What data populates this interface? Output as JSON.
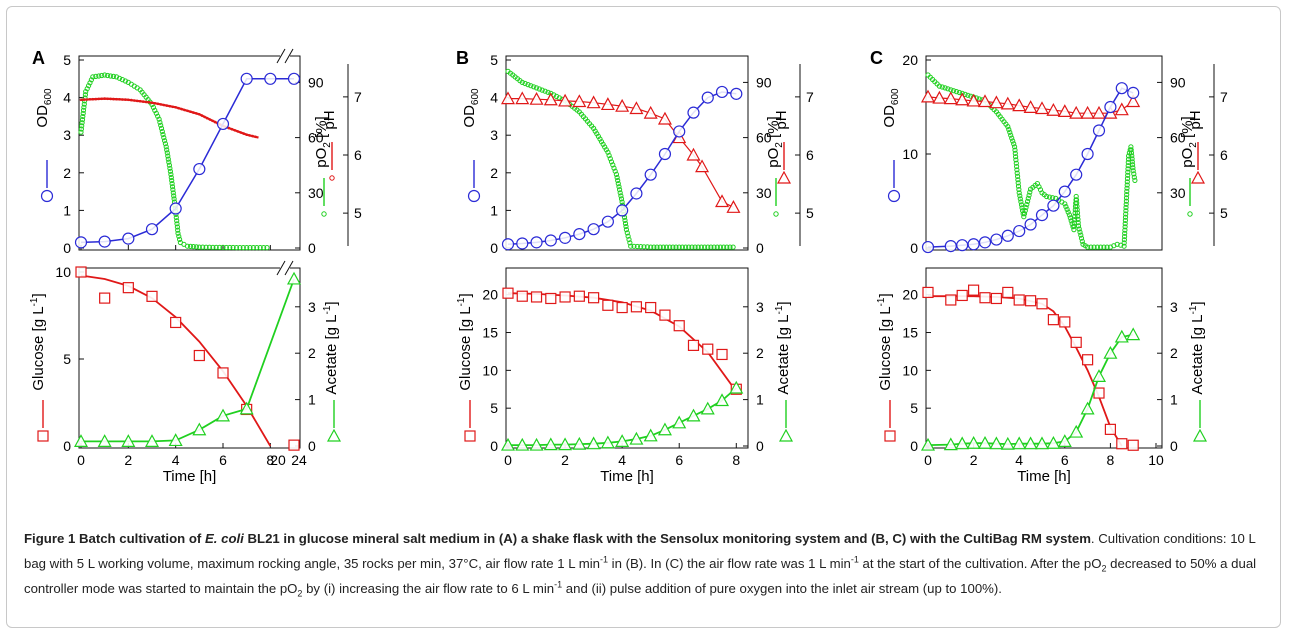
{
  "colors": {
    "blue": "#2b2bd6",
    "green": "#20d020",
    "red": "#e01818",
    "axis": "#111111",
    "caption_rule": "#cccccc"
  },
  "caption": {
    "bold_part1": "Figure 1 Batch cultivation of ",
    "bold_species": "E. coli",
    "bold_part2": " BL21 in glucose mineral salt medium in (A) a shake flask with the Sensolux monitoring system and (B, C) with the CultiBag RM system",
    "text1": ". Cultivation conditions: 10 L bag with 5 L working volume, maximum rocking angle, 35 rocks per min, 37°C, air flow rate 1 L min",
    "sup_minus1": "-1",
    "text2": " in (B). In (C) the air flow rate was 1 L min",
    "text3": " at the start of the cultivation. After the pO",
    "sub2": "2",
    "text4": " decreased to 50% a dual controller mode was started to maintain the pO",
    "text5": " by (i) increasing the air flow rate to 6 L min",
    "text6": " and (ii) pulse addition of pure oxygen into the inlet air stream (up to 100%)."
  },
  "chart_data": [
    {
      "panel": "A",
      "type": "line",
      "top": {
        "xlim": [
          0,
          9
        ],
        "xticks": [
          0,
          2,
          4,
          6,
          8
        ],
        "break_label_x": 24,
        "od": {
          "label": "OD",
          "sub": "600",
          "ylim": [
            0,
            5
          ],
          "ticks": [
            0,
            1,
            2,
            3,
            4,
            5
          ],
          "x": [
            0,
            1,
            2,
            3,
            4,
            5,
            6,
            7,
            8,
            9
          ],
          "y": [
            0.15,
            0.17,
            0.25,
            0.5,
            1.05,
            2.1,
            3.3,
            4.5,
            4.5,
            4.5
          ]
        },
        "po2": {
          "label": "pO",
          "sub": "2",
          "unit": " [%]",
          "ylim": [
            0,
            100
          ],
          "ticks": [
            0,
            30,
            60,
            90
          ],
          "x": [
            0,
            0.2,
            0.5,
            1,
            1.5,
            2,
            2.5,
            3,
            3.3,
            3.6,
            3.8,
            4,
            4.1,
            4.2,
            4.5,
            5,
            6,
            7,
            8
          ],
          "y": [
            63,
            85,
            93,
            94,
            93,
            90,
            86,
            78,
            70,
            55,
            40,
            20,
            8,
            3,
            1,
            0.5,
            0.3,
            0.2,
            0.2
          ]
        },
        "ph": {
          "label": "pH",
          "ylim": [
            4.4,
            7.6
          ],
          "ticks": [
            5,
            6,
            7
          ],
          "x": [
            0,
            1,
            2,
            3,
            4,
            5,
            6,
            7,
            7.5
          ],
          "y": [
            6.95,
            6.97,
            6.95,
            6.9,
            6.82,
            6.7,
            6.5,
            6.35,
            6.3
          ]
        }
      },
      "bottom": {
        "xlim": [
          0,
          9
        ],
        "xticks": [
          0,
          2,
          4,
          6,
          8
        ],
        "xticklabels": [
          "0",
          "2",
          "4",
          "6",
          "8"
        ],
        "break_ticks": [
          "20",
          "24"
        ],
        "xlabel": "Time [h]",
        "glucose": {
          "label": "Glucose [g L",
          "sup": "-1",
          "close": "]",
          "ylim": [
            0,
            10
          ],
          "ticks": [
            0,
            5,
            10
          ],
          "x": [
            0,
            1,
            2,
            3,
            4,
            5,
            6,
            7,
            9
          ],
          "y": [
            10,
            8.5,
            9.1,
            8.6,
            7.1,
            5.2,
            4.2,
            2.1,
            0.05
          ],
          "fit_x": [
            0,
            1,
            2,
            3,
            4,
            5,
            6,
            7,
            8
          ],
          "fit_y": [
            9.8,
            9.6,
            9.2,
            8.5,
            7.4,
            6.0,
            4.3,
            2.3,
            0
          ]
        },
        "acetate": {
          "label": "Acetate [g L",
          "sup": "-1",
          "close": "]",
          "ylim": [
            0,
            3.75
          ],
          "ticks": [
            0,
            1,
            2,
            3
          ],
          "x": [
            0,
            1,
            2,
            3,
            4,
            5,
            6,
            7,
            9
          ],
          "y": [
            0.1,
            0.1,
            0.1,
            0.1,
            0.12,
            0.35,
            0.65,
            0.8,
            3.6
          ]
        }
      }
    },
    {
      "panel": "B",
      "type": "line",
      "top": {
        "xlim": [
          0,
          8.2
        ],
        "od": {
          "label": "OD",
          "sub": "600",
          "ylim": [
            0,
            5
          ],
          "ticks": [
            0,
            1,
            2,
            3,
            4,
            5
          ],
          "x": [
            0,
            0.5,
            1,
            1.5,
            2,
            2.5,
            3,
            3.5,
            4,
            4.5,
            5,
            5.5,
            6,
            6.5,
            7,
            7.5,
            8
          ],
          "y": [
            0.1,
            0.12,
            0.15,
            0.2,
            0.27,
            0.37,
            0.5,
            0.7,
            1.0,
            1.45,
            1.95,
            2.5,
            3.1,
            3.6,
            4.0,
            4.15,
            4.1
          ]
        },
        "po2": {
          "label": "pO",
          "sub": "2",
          "unit": " [%]",
          "ylim": [
            0,
            100
          ],
          "ticks": [
            0,
            30,
            60,
            90
          ],
          "x": [
            0,
            0.5,
            1,
            1.5,
            2,
            2.5,
            3,
            3.5,
            3.8,
            4,
            4.15,
            4.3,
            5,
            6,
            7,
            8
          ],
          "y": [
            96,
            90,
            87,
            84,
            80,
            74,
            65,
            52,
            40,
            25,
            10,
            1,
            0.5,
            0.5,
            0.5,
            0.5
          ]
        },
        "ph": {
          "label": "pH",
          "ylim": [
            4.4,
            7.6
          ],
          "ticks": [
            5,
            6,
            7
          ],
          "x": [
            0,
            0.5,
            1,
            1.5,
            2,
            2.5,
            3,
            3.5,
            4,
            4.5,
            5,
            5.5,
            6,
            6.5,
            6.8,
            7.5,
            7.9
          ],
          "y": [
            6.97,
            6.97,
            6.96,
            6.95,
            6.93,
            6.92,
            6.9,
            6.87,
            6.84,
            6.8,
            6.72,
            6.62,
            6.3,
            6.0,
            5.8,
            5.2,
            5.1
          ]
        }
      },
      "bottom": {
        "xlim": [
          0,
          8.2
        ],
        "xticks": [
          0,
          2,
          4,
          6,
          8
        ],
        "xticklabels": [
          "0",
          "2",
          "4",
          "6",
          "8"
        ],
        "xlabel": "Time [h]",
        "glucose": {
          "label": "Glucose [g L",
          "sup": "-1",
          "close": "]",
          "ylim": [
            0,
            23
          ],
          "ticks": [
            0,
            5,
            10,
            15,
            20
          ],
          "x": [
            0,
            0.5,
            1,
            1.5,
            2,
            2.5,
            3,
            3.5,
            4,
            4.5,
            5,
            5.5,
            6,
            6.5,
            7,
            7.5,
            8
          ],
          "y": [
            20.2,
            19.8,
            19.7,
            19.5,
            19.7,
            19.8,
            19.6,
            18.6,
            18.3,
            18.4,
            18.3,
            17.3,
            15.9,
            13.3,
            12.8,
            12.1,
            7.5
          ],
          "fit_x": [
            0,
            1,
            2,
            3,
            4,
            5,
            6,
            7,
            8
          ],
          "fit_y": [
            20.2,
            20.1,
            19.9,
            19.6,
            19.0,
            17.9,
            15.8,
            12.4,
            7.2
          ]
        },
        "acetate": {
          "label": "Acetate [g L",
          "sup": "-1",
          "close": "]",
          "ylim": [
            0,
            3.75
          ],
          "ticks": [
            0,
            1,
            2,
            3
          ],
          "x": [
            0,
            0.5,
            1,
            1.5,
            2,
            2.5,
            3,
            3.5,
            4,
            4.5,
            5,
            5.5,
            6,
            6.5,
            7,
            7.5,
            8
          ],
          "y": [
            0.02,
            0.02,
            0.02,
            0.03,
            0.03,
            0.04,
            0.05,
            0.07,
            0.1,
            0.15,
            0.22,
            0.35,
            0.5,
            0.65,
            0.8,
            0.98,
            1.25
          ]
        }
      }
    },
    {
      "panel": "C",
      "type": "line",
      "top": {
        "xlim": [
          0,
          10
        ],
        "od": {
          "label": "OD",
          "sub": "600",
          "ylim": [
            0,
            20
          ],
          "ticks": [
            0,
            10,
            20
          ],
          "x": [
            0,
            1,
            1.5,
            2,
            2.5,
            3,
            3.5,
            4,
            4.5,
            5,
            5.5,
            6,
            6.5,
            7,
            7.5,
            8,
            8.5,
            9
          ],
          "y": [
            0.1,
            0.2,
            0.3,
            0.4,
            0.6,
            0.9,
            1.3,
            1.8,
            2.5,
            3.5,
            4.5,
            6.0,
            7.8,
            10,
            12.5,
            15,
            17,
            16.5
          ]
        },
        "po2": {
          "label": "pO",
          "sub": "2",
          "unit": " [%]",
          "ylim": [
            0,
            100
          ],
          "ticks": [
            30,
            60,
            90
          ],
          "x": [
            0,
            0.5,
            1,
            1.5,
            2,
            2.5,
            3,
            3.5,
            3.8,
            4,
            4.2,
            4.5,
            4.8,
            5,
            5.2,
            5.6,
            6,
            6.2,
            6.4,
            6.5,
            6.6,
            6.8,
            7,
            8,
            8.3,
            8.6,
            8.8,
            8.9,
            9,
            9.1
          ],
          "y": [
            94,
            88,
            86,
            84,
            82,
            80,
            74,
            66,
            55,
            30,
            17,
            32,
            35,
            30,
            28,
            27,
            24,
            18,
            10,
            28,
            12,
            2,
            0.5,
            0.5,
            2,
            1,
            50,
            55,
            42,
            35
          ]
        },
        "ph": {
          "label": "pH",
          "ylim": [
            4.4,
            7.6
          ],
          "ticks": [
            5,
            6,
            7
          ],
          "x": [
            0,
            0.5,
            1,
            1.5,
            2,
            2.5,
            3,
            3.5,
            4,
            4.5,
            5,
            5.5,
            6,
            6.5,
            7,
            7.5,
            8,
            8.5,
            9
          ],
          "y": [
            7.0,
            6.98,
            6.97,
            6.95,
            6.93,
            6.92,
            6.9,
            6.88,
            6.85,
            6.82,
            6.8,
            6.77,
            6.75,
            6.72,
            6.72,
            6.72,
            6.72,
            6.78,
            6.92
          ]
        }
      },
      "bottom": {
        "xlim": [
          0,
          10
        ],
        "xticks": [
          0,
          2,
          4,
          6,
          8,
          10
        ],
        "xticklabels": [
          "0",
          "2",
          "4",
          "6",
          "8",
          "10"
        ],
        "xlabel": "Time [h]",
        "glucose": {
          "label": "Glucose [g L",
          "sup": "-1",
          "close": "]",
          "ylim": [
            0,
            23
          ],
          "ticks": [
            0,
            5,
            10,
            15,
            20
          ],
          "x": [
            0,
            1,
            1.5,
            2,
            2.5,
            3,
            3.5,
            4,
            4.5,
            5,
            5.5,
            6,
            6.5,
            7,
            7.5,
            8,
            8.5,
            9
          ],
          "y": [
            20.3,
            19.3,
            19.9,
            20.6,
            19.6,
            19.5,
            20.3,
            19.3,
            19.2,
            18.8,
            16.7,
            16.4,
            13.7,
            11.4,
            7.0,
            2.2,
            0.3,
            0.1
          ],
          "fit_x": [
            0,
            1,
            2,
            3,
            4,
            5,
            5.5,
            6,
            6.5,
            7,
            7.5,
            8,
            8.5
          ],
          "fit_y": [
            19.8,
            19.8,
            19.8,
            19.7,
            19.5,
            18.8,
            17.8,
            15.8,
            13.0,
            10.0,
            6.5,
            2.5,
            0
          ]
        },
        "acetate": {
          "label": "Acetate [g L",
          "sup": "-1",
          "close": "]",
          "ylim": [
            0,
            3.75
          ],
          "ticks": [
            0,
            1,
            2,
            3
          ],
          "x": [
            0,
            1,
            1.5,
            2,
            2.5,
            3,
            3.5,
            4,
            4.5,
            5,
            5.5,
            6,
            6.5,
            7,
            7.5,
            8,
            8.5,
            9
          ],
          "y": [
            0.02,
            0.03,
            0.05,
            0.06,
            0.06,
            0.05,
            0.04,
            0.05,
            0.05,
            0.05,
            0.06,
            0.1,
            0.3,
            0.8,
            1.5,
            2.0,
            2.35,
            2.4
          ]
        }
      }
    }
  ]
}
